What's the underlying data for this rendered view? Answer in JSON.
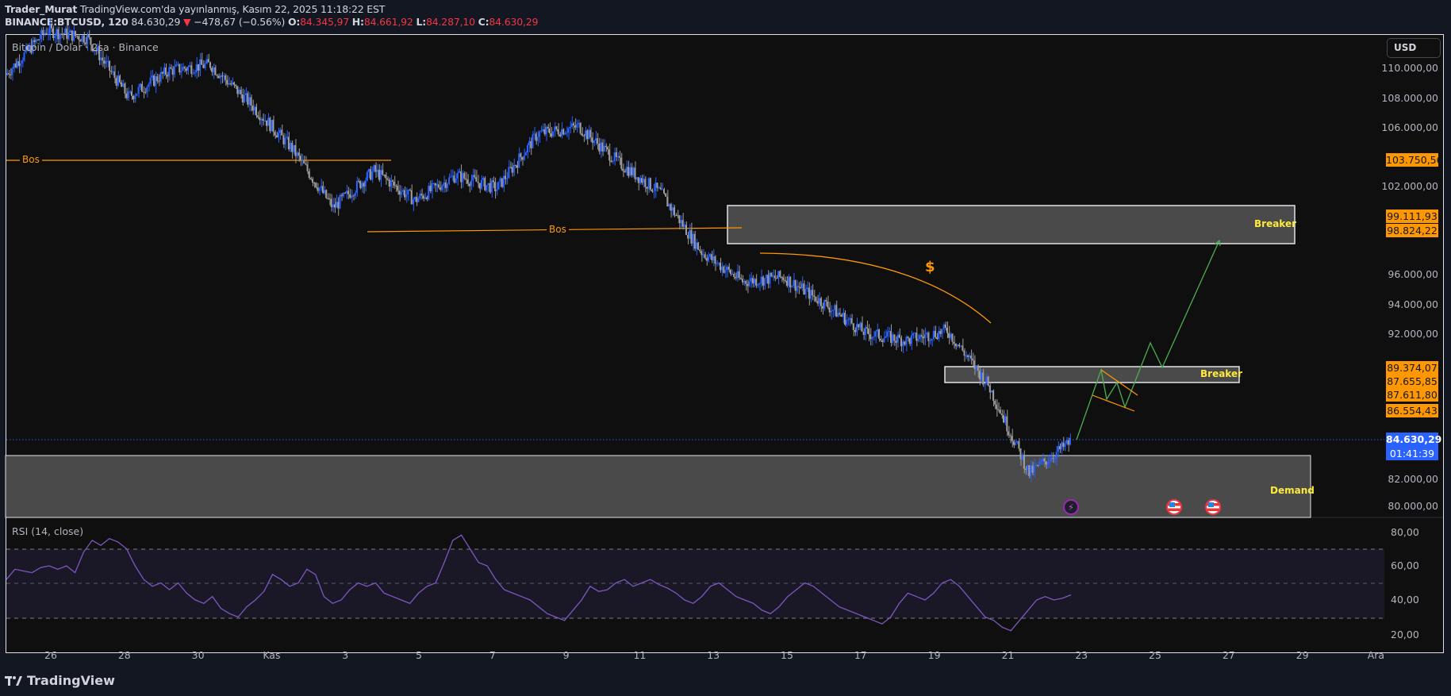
{
  "header": {
    "author": "Trader_Murat",
    "published": "TradingView.com'da yayınlanmış, Kasım 22, 2025 11:18:22 EST",
    "symbol": "BINANCE:BTCUSD, 120",
    "last": "84.630,29",
    "change": "−478,67 (−0.56%)",
    "o_label": "O:",
    "o": "84.345,97",
    "h_label": "H:",
    "h": "84.661,92",
    "l_label": "L:",
    "l": "84.287,10",
    "c_label": "C:",
    "c": "84.630,29"
  },
  "legend": "Bitcoin / Dolar · 2sa · Binance",
  "rsi_legend": "RSI (14, close)",
  "currency": "USD",
  "price_axis": [
    "110.000,00",
    "108.000,00",
    "106.000,00",
    "102.000,00",
    "96.000,00",
    "94.000,00",
    "92.000,00",
    "82.000,00",
    "80.000,00"
  ],
  "rsi_axis": [
    "80,00",
    "60,00",
    "40,00",
    "20,00"
  ],
  "tags": {
    "t1": "103.750,56",
    "t2": "99.111,93",
    "t3": "98.824,22",
    "t4": "89.374,07",
    "t5": "87.655,85",
    "t6": "87.611,80",
    "t7": "86.554,43",
    "current": "84.630,29",
    "countdown": "01:41:39"
  },
  "dates": [
    "26",
    "28",
    "30",
    "Kas",
    "3",
    "5",
    "7",
    "9",
    "11",
    "13",
    "15",
    "17",
    "19",
    "21",
    "23",
    "25",
    "27",
    "29",
    "Ara"
  ],
  "annotations": {
    "bos_upper": "Bos",
    "bos_lower": "Bos",
    "breaker_upper": "Breaker",
    "breaker_lower": "Breaker",
    "demand": "Demand",
    "dollar": "$"
  },
  "brand": "TradingView",
  "colors": {
    "up": "#2962ff",
    "down": "#9e9e9e",
    "bos": "#ff9800",
    "zone_label": "#ffeb3b",
    "projection": "#4caf50",
    "rsi": "#7e57c2",
    "current_price": "#2962ff"
  },
  "chart_data": {
    "type": "candlestick",
    "title": "Bitcoin / Dolar · 2sa · Binance",
    "symbol": "BINANCE:BTCUSD",
    "interval": "2h",
    "xlabel": "",
    "ylabel": "USD",
    "ylim": [
      79500,
      111500
    ],
    "x_ticks": [
      "26",
      "28",
      "30",
      "Kas",
      "3",
      "5",
      "7",
      "9",
      "11",
      "13",
      "15",
      "17",
      "19",
      "21",
      "23",
      "25",
      "27",
      "29",
      "Ara"
    ],
    "y_ticks": [
      80000,
      82000,
      84000,
      86000,
      88000,
      90000,
      92000,
      94000,
      96000,
      98000,
      100000,
      102000,
      104000,
      106000,
      108000,
      110000
    ],
    "approx_close_path": [
      {
        "date": "Oct 25",
        "price": 109500
      },
      {
        "date": "Oct 27",
        "price": 112500
      },
      {
        "date": "Oct 29",
        "price": 112000
      },
      {
        "date": "Oct 30",
        "price": 108000
      },
      {
        "date": "Oct 31",
        "price": 109800
      },
      {
        "date": "Nov 2",
        "price": 110200
      },
      {
        "date": "Nov 3",
        "price": 107500
      },
      {
        "date": "Nov 4",
        "price": 104500
      },
      {
        "date": "Nov 5",
        "price": 100500
      },
      {
        "date": "Nov 6",
        "price": 103000
      },
      {
        "date": "Nov 7",
        "price": 101000
      },
      {
        "date": "Nov 8",
        "price": 102700
      },
      {
        "date": "Nov 9",
        "price": 101800
      },
      {
        "date": "Nov 10",
        "price": 105500
      },
      {
        "date": "Nov 11",
        "price": 106000
      },
      {
        "date": "Nov 12",
        "price": 103500
      },
      {
        "date": "Nov 13",
        "price": 101500
      },
      {
        "date": "Nov 14",
        "price": 97500
      },
      {
        "date": "Nov 15",
        "price": 95500
      },
      {
        "date": "Nov 16",
        "price": 95800
      },
      {
        "date": "Nov 17",
        "price": 94000
      },
      {
        "date": "Nov 18",
        "price": 92000
      },
      {
        "date": "Nov 19",
        "price": 91500
      },
      {
        "date": "Nov 20",
        "price": 92200
      },
      {
        "date": "Nov 20b",
        "price": 88500
      },
      {
        "date": "Nov 21",
        "price": 82500
      },
      {
        "date": "Nov 22",
        "price": 84630
      }
    ],
    "horizontal_levels": [
      {
        "label": "Bos",
        "price": 103750.56
      },
      {
        "label": "Bos",
        "price": 98900
      }
    ],
    "zones": [
      {
        "label": "Breaker",
        "top": 99111.93,
        "bottom": 98824.22
      },
      {
        "label": "Breaker",
        "top": 89374.07,
        "bottom": 87655.85
      },
      {
        "label": "Demand",
        "top": 83500,
        "bottom": 79500
      }
    ],
    "price_tags": [
      103750.56,
      99111.93,
      98824.22,
      89374.07,
      87655.85,
      87611.8,
      86554.43
    ],
    "current_price": 84630.29,
    "projection_path": [
      84630,
      89300,
      87700,
      89000,
      87500,
      90200,
      88900,
      98300
    ],
    "rsi": {
      "label": "RSI (14, close)",
      "ylim": [
        15,
        85
      ],
      "bands": [
        30,
        50,
        70
      ],
      "ticks": [
        80,
        60,
        40,
        20
      ],
      "approx_values": [
        52,
        58,
        57,
        56,
        59,
        60,
        58,
        60,
        56,
        68,
        75,
        72,
        76,
        74,
        70,
        60,
        52,
        48,
        50,
        46,
        50,
        44,
        40,
        38,
        42,
        35,
        32,
        30,
        36,
        40,
        45,
        55,
        52,
        48,
        50,
        58,
        55,
        42,
        38,
        40,
        46,
        50,
        48,
        50,
        44,
        42,
        40,
        38,
        44,
        48,
        50,
        62,
        75,
        78,
        70,
        62,
        60,
        52,
        46,
        44,
        42,
        40,
        36,
        32,
        30,
        28,
        34,
        40,
        48,
        45,
        46,
        50,
        52,
        48,
        50,
        52,
        49,
        47,
        44,
        40,
        38,
        42,
        48,
        50,
        46,
        42,
        40,
        38,
        34,
        32,
        36,
        42,
        46,
        50,
        48,
        44,
        40,
        36,
        34,
        32,
        30,
        28,
        26,
        30,
        38,
        44,
        42,
        40,
        44,
        50,
        52,
        48,
        42,
        36,
        30,
        28,
        24,
        22,
        28,
        34,
        40,
        42,
        40,
        41,
        43
      ]
    }
  }
}
